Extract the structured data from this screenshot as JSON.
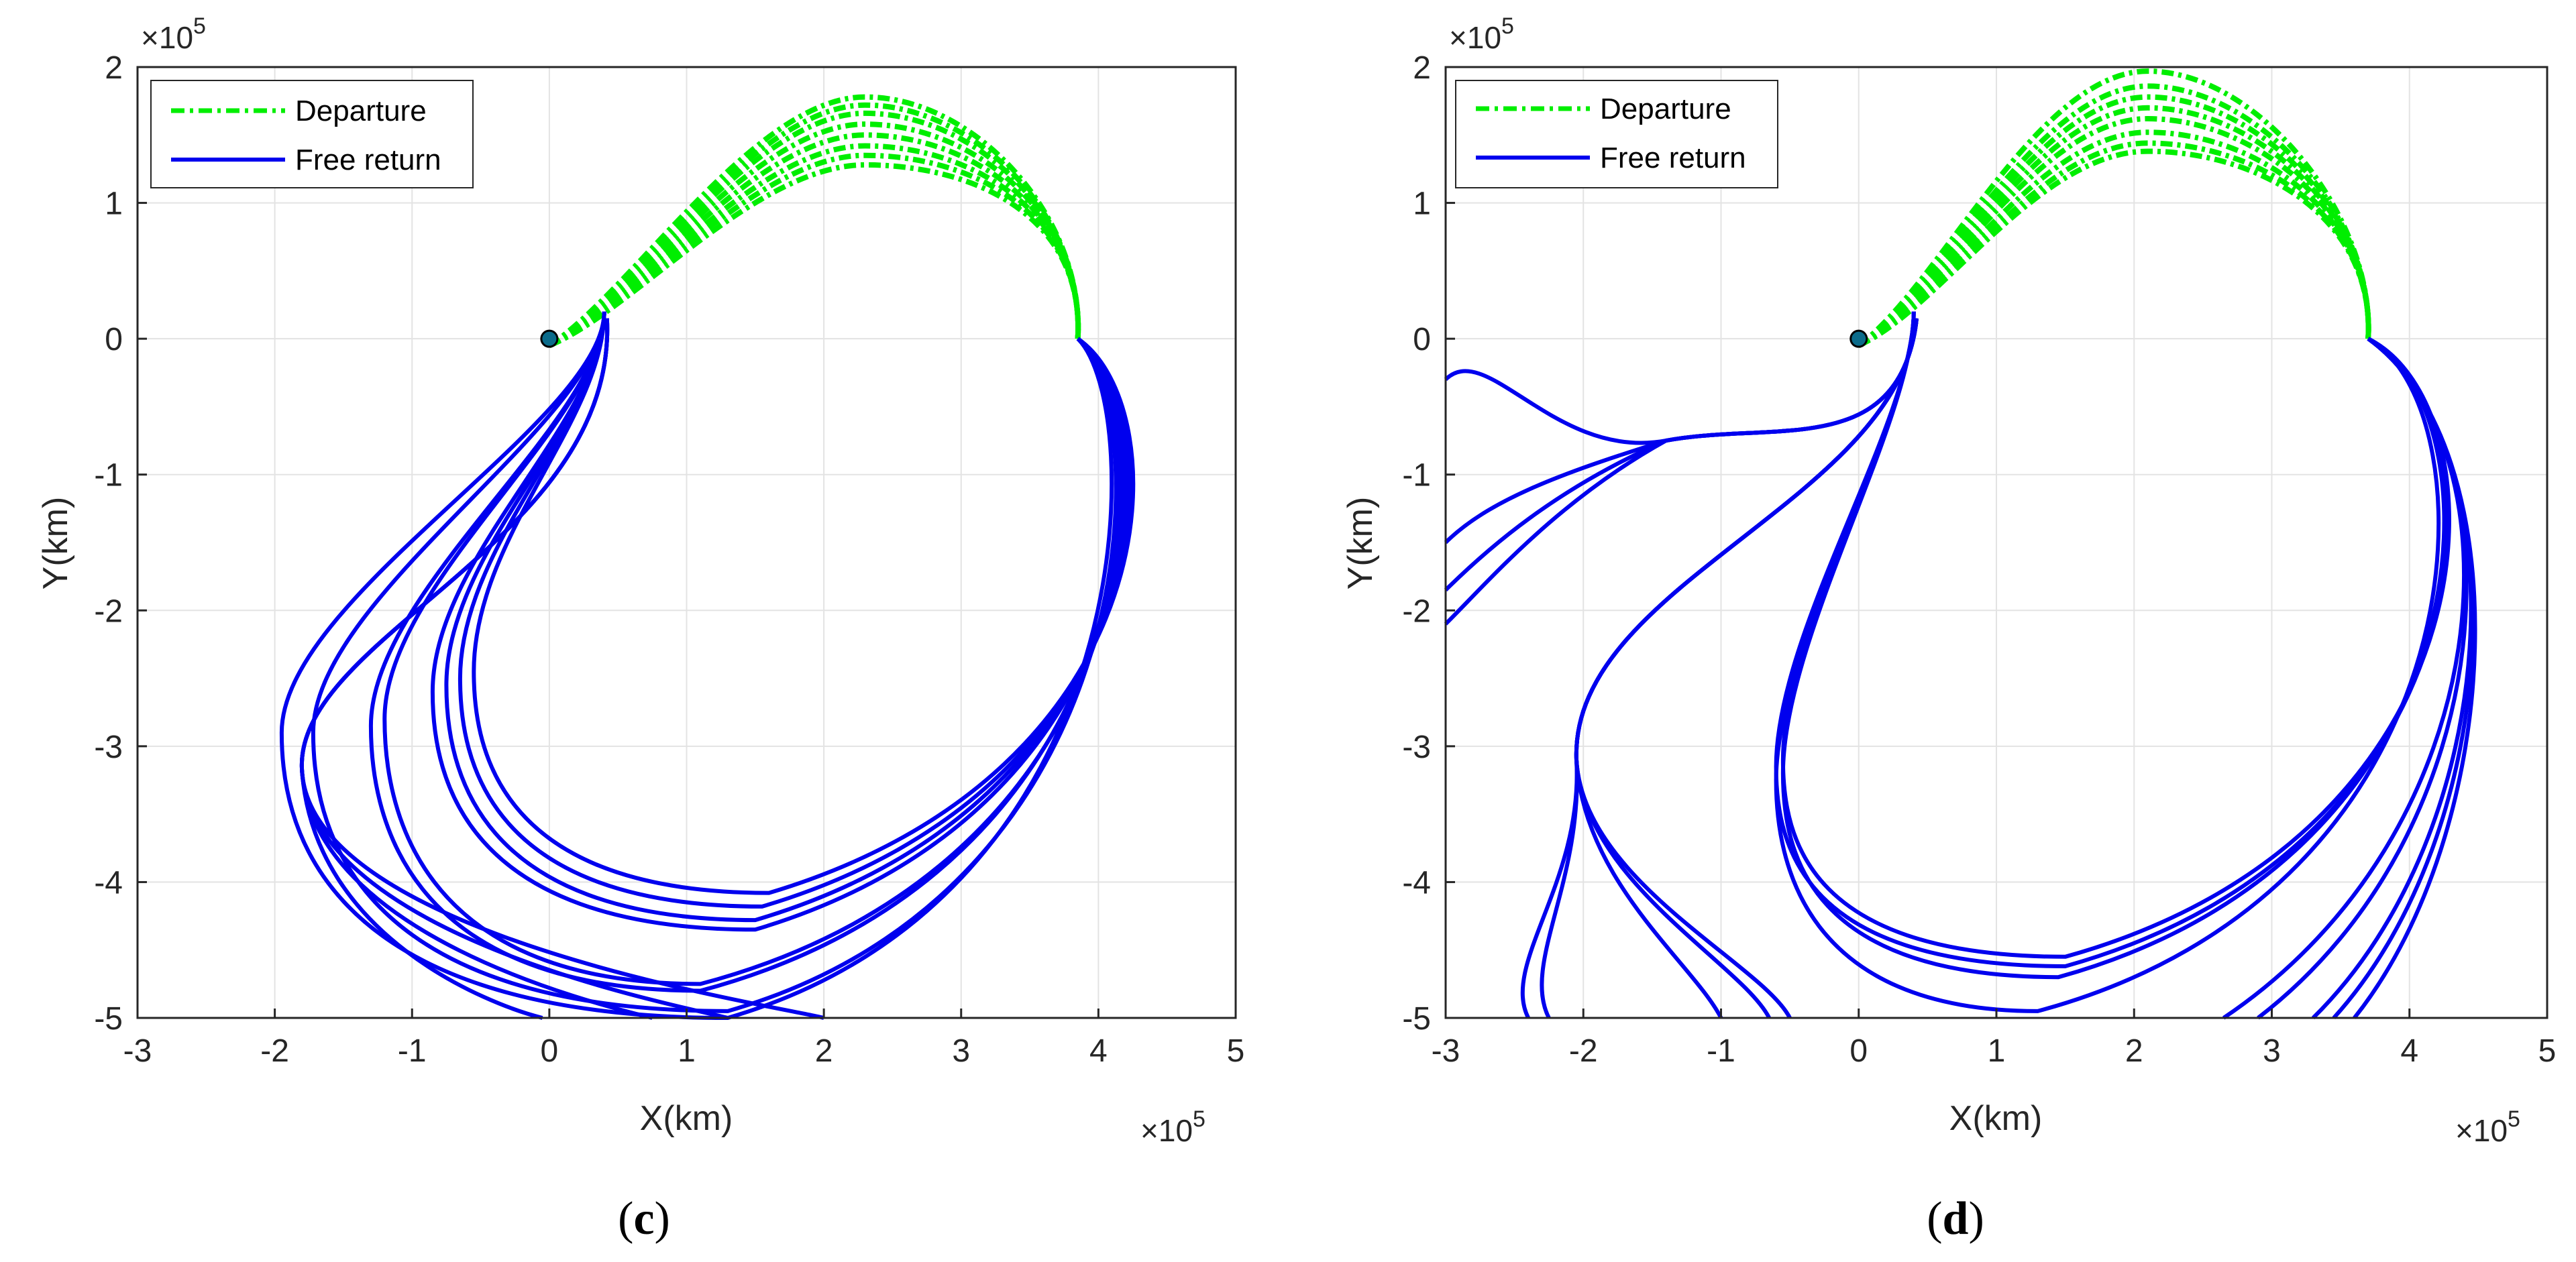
{
  "chart_data": [
    {
      "type": "line",
      "panel_label": "c",
      "xlabel": "X(km)",
      "ylabel": "Y(km)",
      "x_multiplier": "×10",
      "y_multiplier": "×10",
      "multiplier_exponent": "5",
      "xlim": [
        -3,
        5
      ],
      "ylim": [
        -5,
        2
      ],
      "xticks": [
        -3,
        -2,
        -1,
        0,
        1,
        2,
        3,
        4,
        5
      ],
      "yticks": [
        -5,
        -4,
        -3,
        -2,
        -1,
        0,
        1,
        2
      ],
      "grid": true,
      "legend_position": "top-left",
      "legend": [
        {
          "name": "Departure",
          "color": "#00ee00",
          "style": "dash-dot"
        },
        {
          "name": "Free return",
          "color": "#0000ee",
          "style": "solid"
        }
      ],
      "earth_marker": {
        "x": 0,
        "y": 0
      },
      "departure_family": {
        "color": "#00ee00",
        "start": [
          0,
          -0.05
        ],
        "end": [
          3.85,
          0
        ],
        "peak_x": 2.3,
        "peak_y": [
          1.28,
          1.35,
          1.42,
          1.5,
          1.58,
          1.66,
          1.72,
          1.78
        ]
      },
      "free_return_family": {
        "color": "#0000ee",
        "start": [
          3.85,
          0
        ],
        "curves": [
          {
            "rx": 4.58,
            "by": -4.08,
            "bx": 1.6,
            "lx": -0.55,
            "ly": -2.45,
            "ex": 0.4,
            "ey": 0.2
          },
          {
            "rx": 4.55,
            "by": -4.18,
            "bx": 1.55,
            "lx": -0.65,
            "ly": -2.5,
            "ex": 0.4,
            "ey": 0.2
          },
          {
            "rx": 4.52,
            "by": -4.28,
            "bx": 1.5,
            "lx": -0.75,
            "ly": -2.55,
            "ex": 0.4,
            "ey": 0.2
          },
          {
            "rx": 4.5,
            "by": -4.35,
            "bx": 1.5,
            "lx": -0.85,
            "ly": -2.6,
            "ex": 0.4,
            "ey": 0.2
          },
          {
            "rx": 4.48,
            "by": -4.75,
            "bx": 1.1,
            "lx": -1.2,
            "ly": -2.8,
            "ex": 0.4,
            "ey": 0.2
          },
          {
            "rx": 4.45,
            "by": -4.8,
            "bx": 1.1,
            "lx": -1.3,
            "ly": -2.85,
            "ex": 0.4,
            "ey": 0.2
          },
          {
            "rx": 4.4,
            "by": -4.95,
            "bx": 1.3,
            "lx": -1.72,
            "ly": -2.9,
            "ex": 0.4,
            "ey": 0.2
          },
          {
            "rx": 4.35,
            "by": -5.0,
            "bx": 1.3,
            "lx": -1.95,
            "ly": -2.9,
            "ex": 0.4,
            "ey": 0.2
          }
        ],
        "bottom_exits_x": [
          0.75,
          1.3,
          2.0,
          -0.05
        ]
      }
    },
    {
      "type": "line",
      "panel_label": "d",
      "xlabel": "X(km)",
      "ylabel": "Y(km)",
      "x_multiplier": "×10",
      "y_multiplier": "×10",
      "multiplier_exponent": "5",
      "xlim": [
        -3,
        5
      ],
      "ylim": [
        -5,
        2
      ],
      "xticks": [
        -3,
        -2,
        -1,
        0,
        1,
        2,
        3,
        4,
        5
      ],
      "yticks": [
        -5,
        -4,
        -3,
        -2,
        -1,
        0,
        1,
        2
      ],
      "grid": true,
      "legend_position": "top-left",
      "legend": [
        {
          "name": "Departure",
          "color": "#00ee00",
          "style": "dash-dot"
        },
        {
          "name": "Free return",
          "color": "#0000ee",
          "style": "solid"
        }
      ],
      "earth_marker": {
        "x": 0,
        "y": 0
      },
      "departure_family": {
        "color": "#00ee00",
        "start": [
          0,
          -0.05
        ],
        "end": [
          3.7,
          0
        ],
        "peak_x": 2.1,
        "peak_y": [
          1.38,
          1.44,
          1.52,
          1.62,
          1.7,
          1.78,
          1.86,
          1.97
        ]
      },
      "free_return_family": {
        "color": "#0000ee",
        "start": [
          3.7,
          0
        ],
        "curves": [
          {
            "rx": 4.7,
            "by": -4.55,
            "bx": 1.5,
            "lx": -0.55,
            "ly": -3.1,
            "ex": 0.4,
            "ey": 0.2
          },
          {
            "rx": 4.68,
            "by": -4.62,
            "bx": 1.5,
            "lx": -0.6,
            "ly": -3.15,
            "ex": 0.4,
            "ey": 0.2
          },
          {
            "rx": 4.65,
            "by": -4.7,
            "bx": 1.45,
            "lx": -0.55,
            "ly": -3.2,
            "ex": 0.4,
            "ey": 0.2
          },
          {
            "rx": 4.6,
            "by": -4.95,
            "bx": 1.3,
            "lx": -0.6,
            "ly": -3.25,
            "ex": 0.4,
            "ey": 0.2
          }
        ],
        "escape_curves": [
          {
            "ex": -3.0,
            "ey": -0.3
          },
          {
            "ex": -3.0,
            "ey": -1.5
          },
          {
            "ex": -3.0,
            "ey": -1.85
          },
          {
            "ex": -3.0,
            "ey": -2.1
          }
        ],
        "left_loops_exit_x": [
          -0.5,
          -0.65,
          -1.0,
          -2.25,
          -2.4
        ],
        "bottom_right_exits_x": [
          2.65,
          2.9,
          3.3,
          3.45,
          3.6
        ]
      }
    }
  ]
}
